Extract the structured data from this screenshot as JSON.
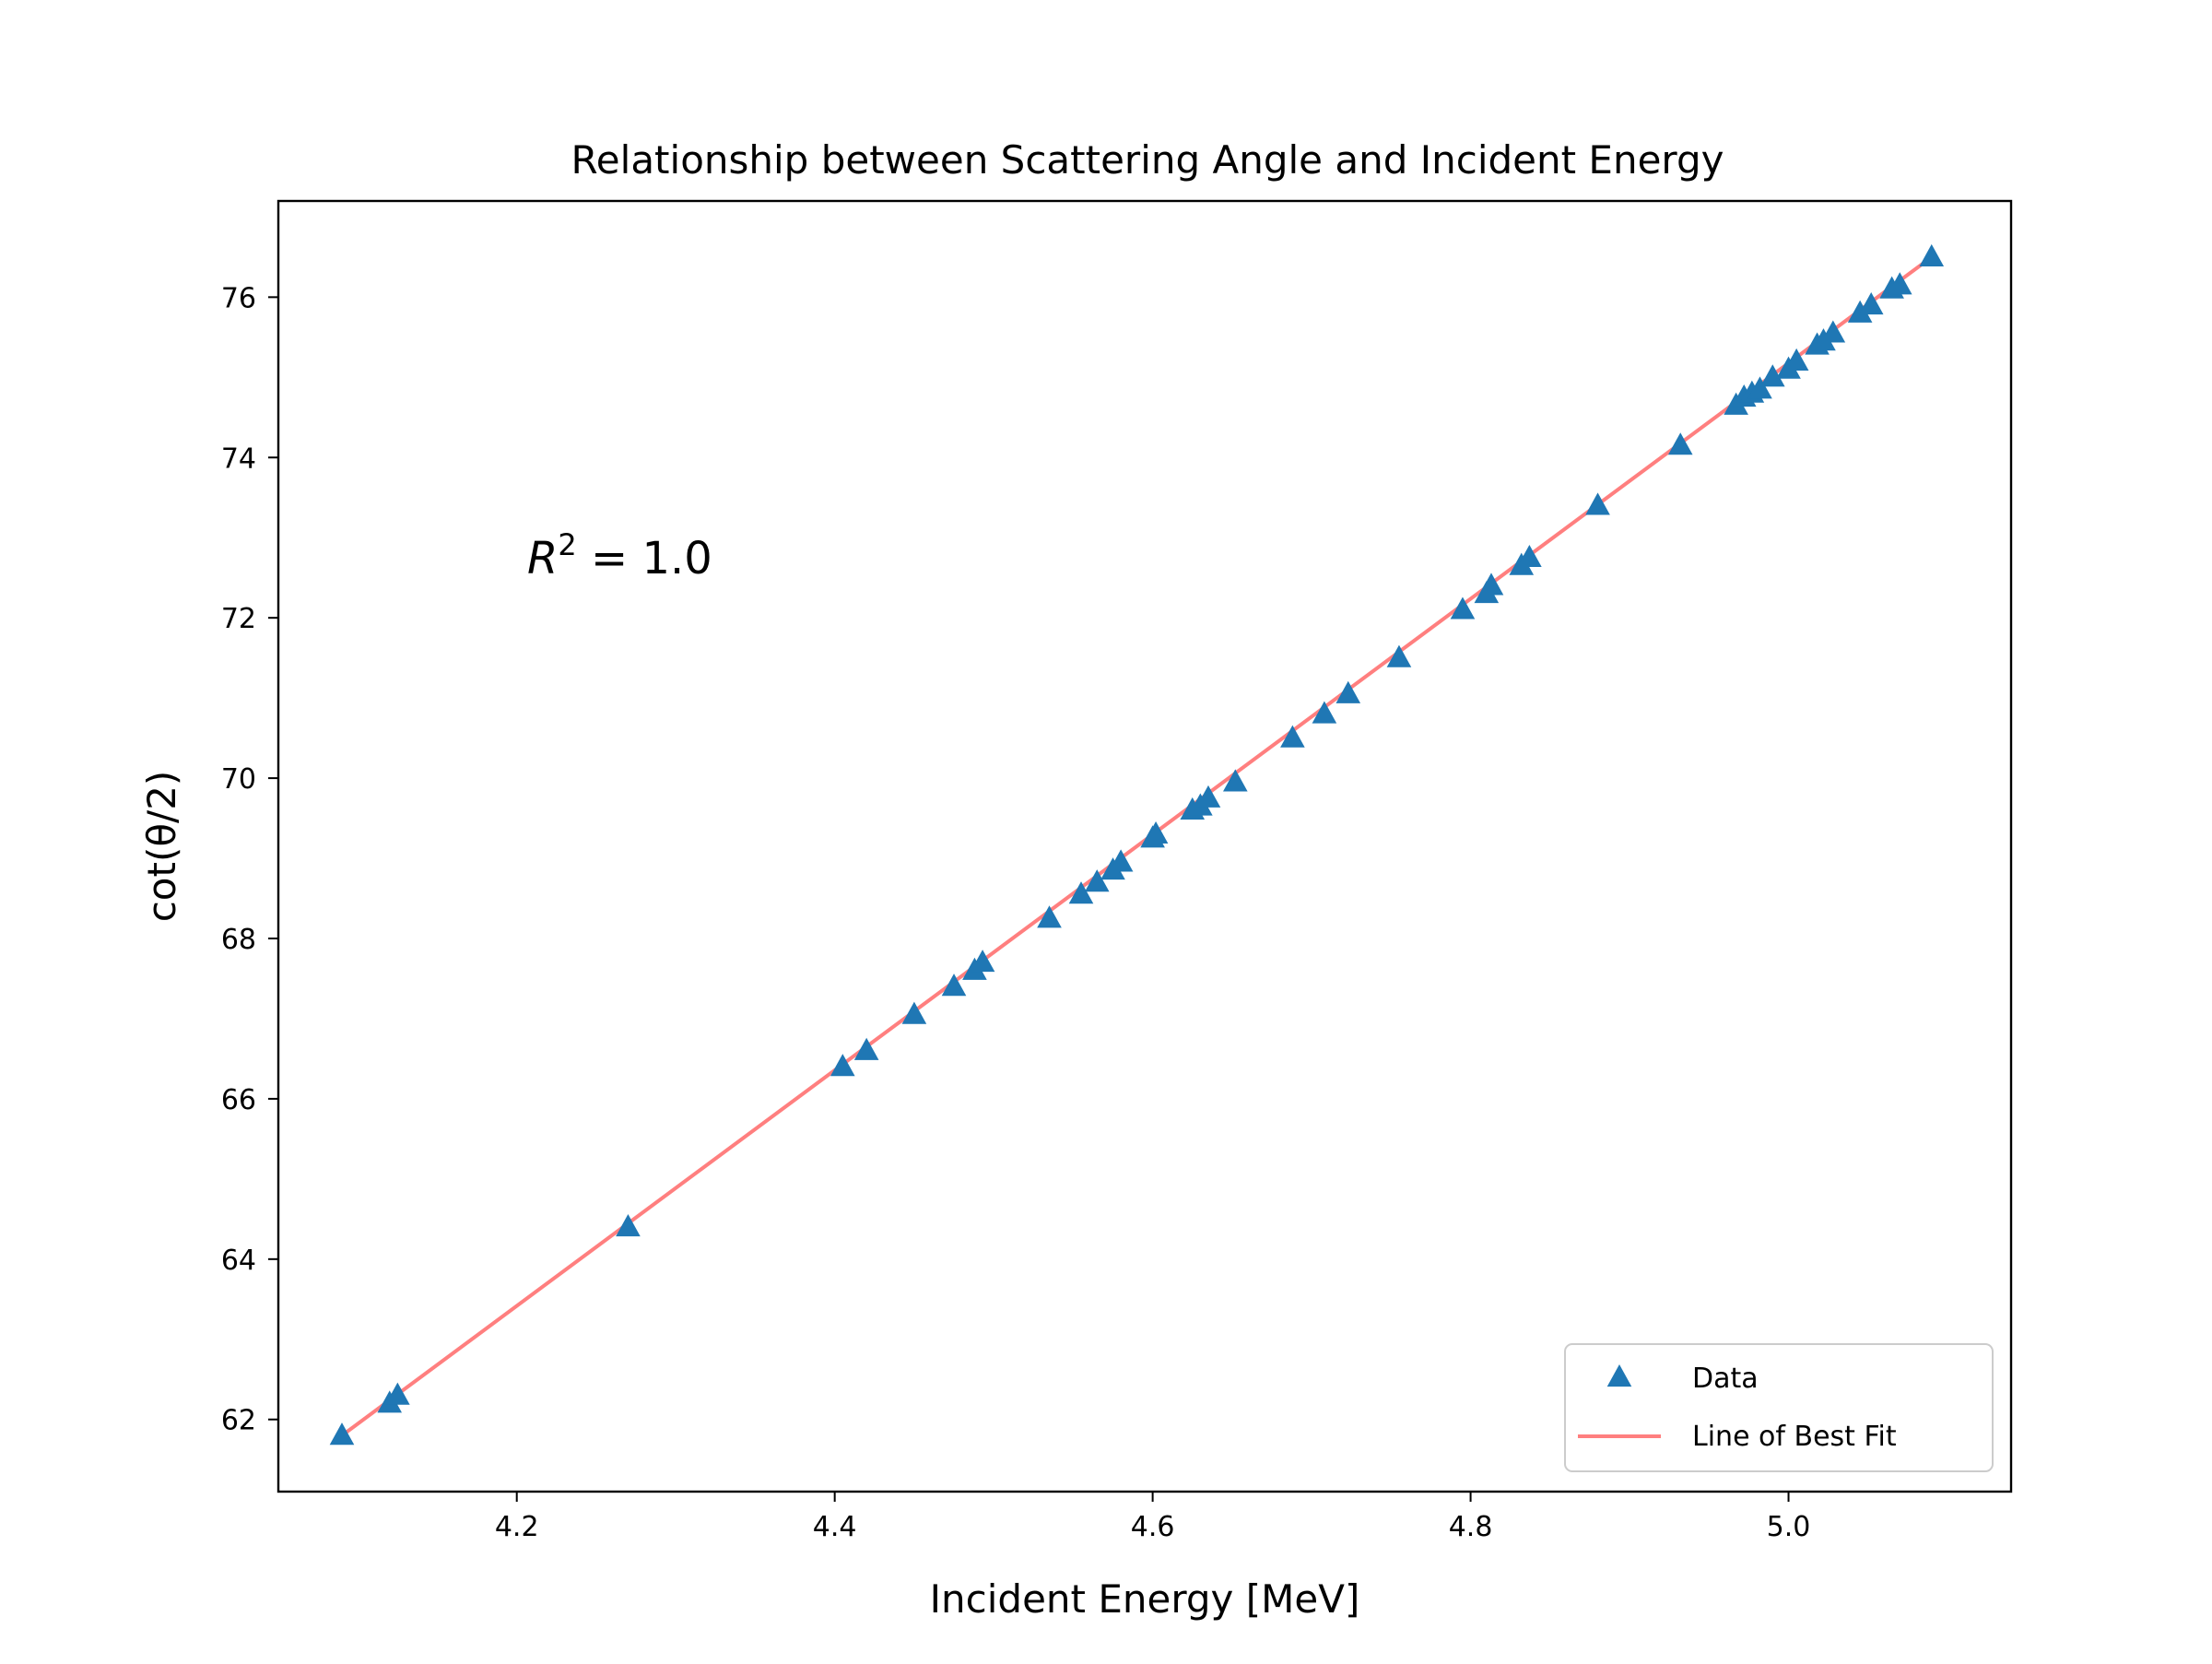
{
  "chart_data": {
    "type": "scatter",
    "title": "Relationship between Scattering Angle and Incident Energy",
    "xlabel": "Incident Energy [MeV]",
    "ylabel": "cot(θ/2)",
    "xlim": [
      4.05,
      5.14
    ],
    "ylim": [
      61.1,
      77.2
    ],
    "xticks": [
      4.2,
      4.4,
      4.6,
      4.8,
      5.0
    ],
    "xtick_labels": [
      "4.2",
      "4.4",
      "4.6",
      "4.8",
      "5.0"
    ],
    "yticks": [
      62,
      64,
      66,
      68,
      70,
      72,
      74,
      76
    ],
    "ytick_labels": [
      "62",
      "64",
      "66",
      "68",
      "70",
      "72",
      "74",
      "76"
    ],
    "grid": false,
    "legend_position": "lower-right",
    "annotation": {
      "symbol": "R",
      "superscript": "2",
      "rest": " = 1.0"
    },
    "series": [
      {
        "name": "Data",
        "kind": "scatter",
        "marker": "triangle",
        "color": "#1f77b4",
        "x": [
          4.09,
          4.12,
          4.125,
          4.27,
          4.405,
          4.42,
          4.45,
          4.475,
          4.488,
          4.493,
          4.535,
          4.555,
          4.565,
          4.575,
          4.58,
          4.6,
          4.602,
          4.625,
          4.63,
          4.635,
          4.652,
          4.688,
          4.708,
          4.723,
          4.755,
          4.795,
          4.81,
          4.813,
          4.832,
          4.837,
          4.88,
          4.932,
          4.967,
          4.972,
          4.977,
          4.982,
          4.99,
          5.0,
          5.005,
          5.018,
          5.022,
          5.028,
          5.045,
          5.052,
          5.065,
          5.07,
          5.09
        ],
        "y": [
          61.8,
          62.2,
          62.3,
          64.4,
          66.4,
          66.6,
          67.05,
          67.4,
          67.6,
          67.7,
          68.25,
          68.55,
          68.7,
          68.85,
          68.95,
          69.25,
          69.3,
          69.6,
          69.65,
          69.75,
          69.95,
          70.5,
          70.8,
          71.05,
          71.5,
          72.1,
          72.3,
          72.4,
          72.65,
          72.75,
          73.4,
          74.15,
          74.65,
          74.75,
          74.8,
          74.85,
          75.0,
          75.1,
          75.2,
          75.4,
          75.45,
          75.55,
          75.8,
          75.9,
          76.1,
          76.15,
          76.5
        ]
      },
      {
        "name": "Line of Best Fit",
        "kind": "line",
        "color": "#ff7f7f",
        "x": [
          4.09,
          5.09
        ],
        "y": [
          61.8,
          76.5
        ]
      }
    ]
  }
}
